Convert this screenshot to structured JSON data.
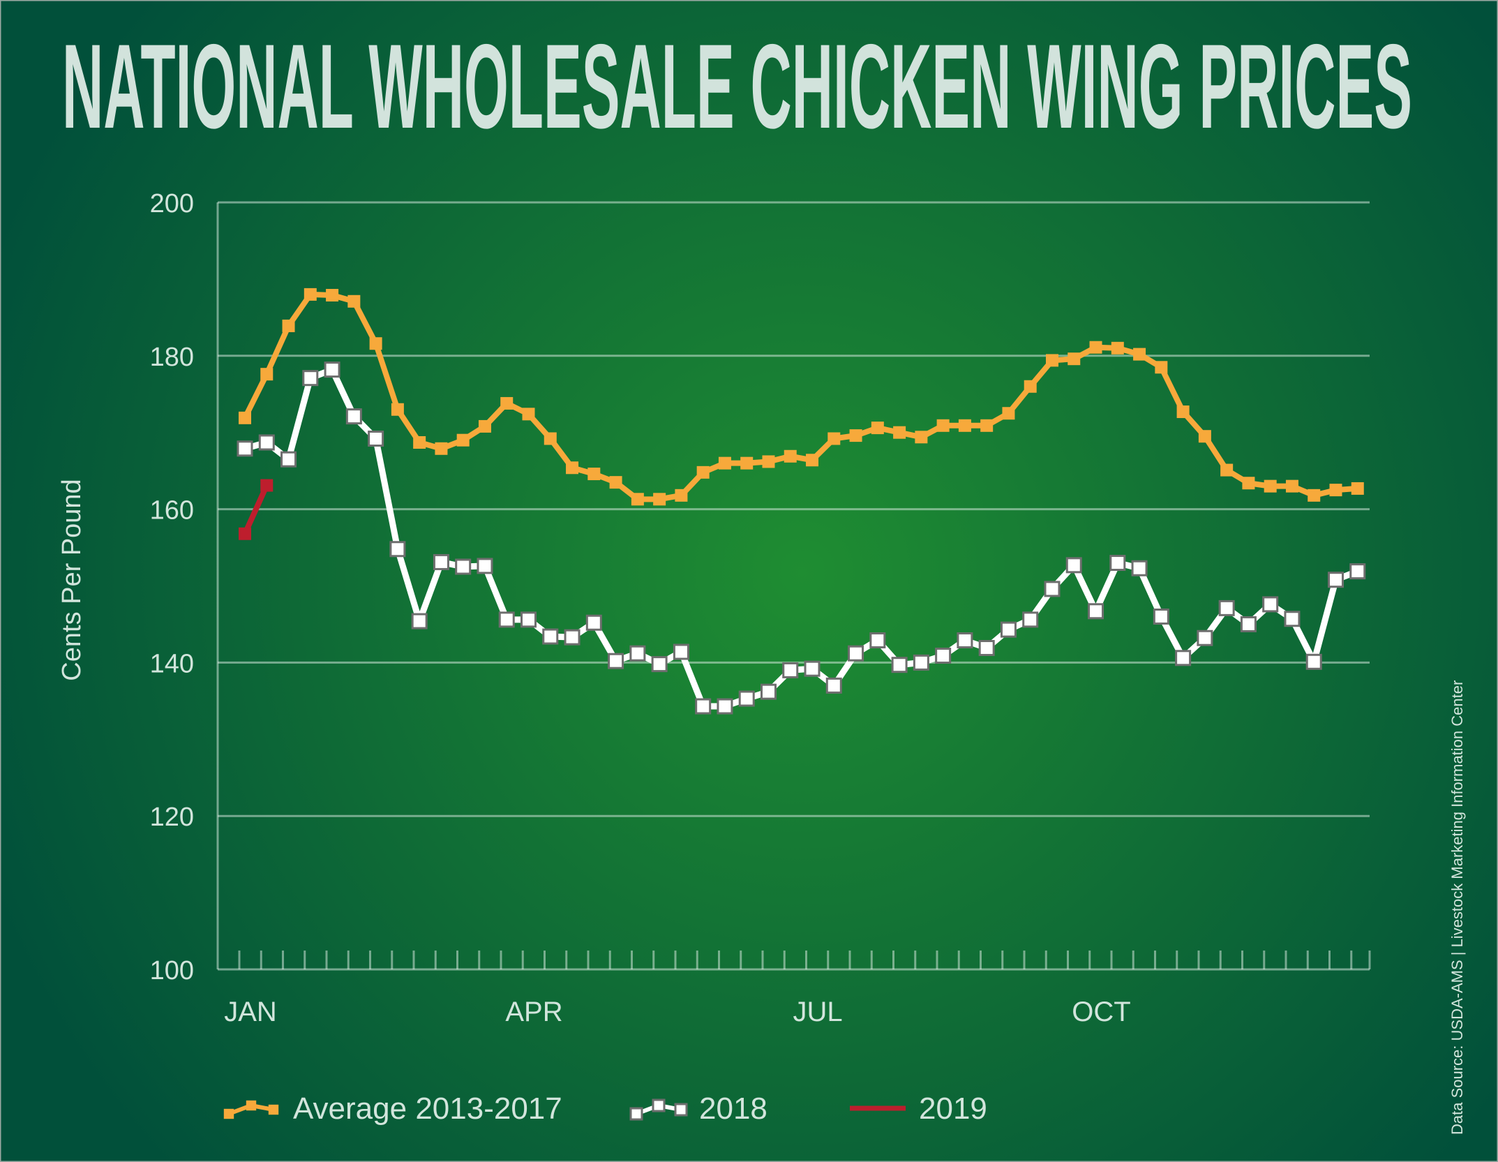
{
  "chart_data": {
    "type": "line",
    "title": "NATIONAL WHOLESALE CHICKEN WING PRICES",
    "ylabel": "Cents Per Pound",
    "xlabel": "",
    "ylim": [
      100,
      200
    ],
    "yticks": [
      100,
      120,
      140,
      160,
      180,
      200
    ],
    "xtick_labels": [
      {
        "label": "JAN",
        "week": 1
      },
      {
        "label": "APR",
        "week": 14
      },
      {
        "label": "JUL",
        "week": 27
      },
      {
        "label": "OCT",
        "week": 40
      }
    ],
    "x_unit": "week",
    "grid": "horizontal",
    "legend_placement": "bottom",
    "source": "Data Source:  USDA-AMS | Livestock Marketing Information Center",
    "series": [
      {
        "name": "Average 2013-2017",
        "color": "#f7a93b",
        "marker": "filled-square",
        "values": [
          171.9,
          177.6,
          183.9,
          188.0,
          187.9,
          187.1,
          181.6,
          173.0,
          168.7,
          167.9,
          169.0,
          170.8,
          173.8,
          172.4,
          169.2,
          165.4,
          164.6,
          163.5,
          161.3,
          161.3,
          161.8,
          164.8,
          166.0,
          166.0,
          166.2,
          166.9,
          166.4,
          169.2,
          169.6,
          170.6,
          170.0,
          169.4,
          170.9,
          170.9,
          170.9,
          172.5,
          176.0,
          179.4,
          179.6,
          181.1,
          181.0,
          180.2,
          178.5,
          172.7,
          169.5,
          165.1,
          163.4,
          163.0,
          163.0,
          161.8,
          162.5,
          162.7
        ]
      },
      {
        "name": "2018",
        "color": "#ffffff",
        "marker": "open-square",
        "values": [
          167.9,
          168.7,
          166.5,
          177.1,
          178.2,
          172.1,
          169.2,
          154.8,
          145.4,
          153.1,
          152.5,
          152.6,
          145.6,
          145.6,
          143.4,
          143.3,
          145.2,
          140.2,
          141.2,
          139.8,
          141.4,
          134.3,
          134.3,
          135.3,
          136.2,
          139.0,
          139.2,
          137.0,
          141.2,
          142.9,
          139.7,
          140.0,
          140.9,
          142.9,
          141.9,
          144.3,
          145.6,
          149.6,
          152.7,
          146.7,
          153.0,
          152.3,
          146.0,
          140.6,
          143.2,
          147.1,
          145.0,
          147.6,
          145.7,
          140.1,
          150.8,
          151.9
        ]
      },
      {
        "name": "2019",
        "color": "#be1e2d",
        "marker": "filled-square",
        "values": [
          156.8,
          163.1
        ]
      }
    ]
  }
}
